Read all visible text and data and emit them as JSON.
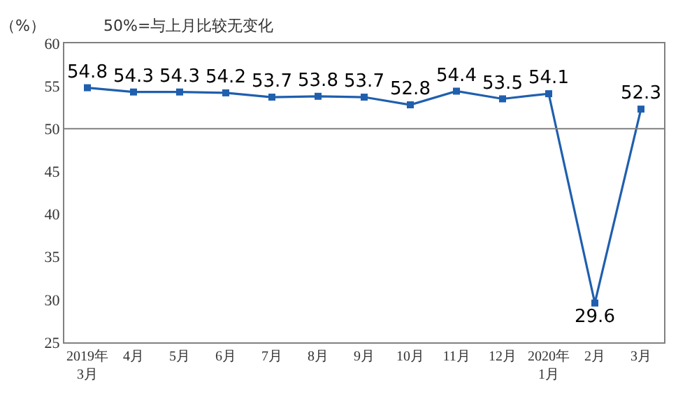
{
  "chart_data": {
    "type": "line",
    "ylabel": "（%）",
    "annotations": [
      "50%=与上月比较无变化"
    ],
    "categories": [
      "2019年\n3月",
      "4月",
      "5月",
      "6月",
      "7月",
      "8月",
      "9月",
      "10月",
      "11月",
      "12月",
      "2020年\n1月",
      "2月",
      "3月"
    ],
    "series": [
      {
        "color": "#1f5fae",
        "values": [
          54.8,
          54.3,
          54.3,
          54.2,
          53.7,
          53.8,
          53.7,
          52.8,
          54.4,
          53.5,
          54.1,
          29.6,
          52.3
        ]
      }
    ],
    "ylim": [
      25,
      60
    ],
    "yticks": [
      25,
      30,
      35,
      40,
      45,
      50,
      55,
      60
    ],
    "ref_lines": [
      {
        "axis": "y",
        "value": 50,
        "color": "#808080"
      }
    ],
    "data_labels": true,
    "marker": "square",
    "line_style": "solid"
  }
}
